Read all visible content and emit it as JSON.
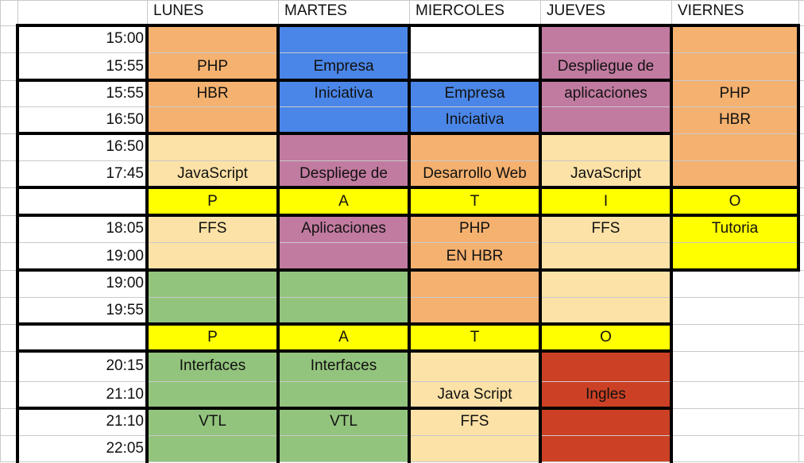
{
  "colors": {
    "orange": "#f5b16f",
    "blue": "#4a86e8",
    "purple": "#c27ba0",
    "cream": "#fde2a7",
    "yellow": "#ffff00",
    "green": "#93c47d",
    "red": "#cc4125",
    "white": "#ffffff"
  },
  "days": [
    "LUNES",
    "MARTES",
    "MIERCOLES",
    "JUEVES",
    "VIERNES"
  ],
  "times": {
    "r1": "15:00",
    "r2": "15:55",
    "r3": "15:55",
    "r4": "16:50",
    "r5": "16:50",
    "r6": "17:45",
    "r8": "18:05",
    "r9": "19:00",
    "r10": "19:00",
    "r11": "19:55",
    "r13": "20:15",
    "r14": "21:10",
    "r15": "21:10",
    "r16": "22:05"
  },
  "patio1": [
    "P",
    "A",
    "T",
    "I",
    "O"
  ],
  "patio2": [
    "P",
    "A",
    "T",
    "O"
  ],
  "subjects": {
    "lunes": {
      "php": "PHP",
      "hbr": "HBR",
      "javascript": "JavaScript",
      "ffs": "FFS",
      "interfaces": "Interfaces",
      "vtl": "VTL"
    },
    "martes": {
      "empresa": "Empresa",
      "iniciativa": "Iniciativa",
      "despliege": "Despliege de",
      "aplicaciones": "Aplicaciones",
      "interfaces": "Interfaces",
      "vtl": "VTL"
    },
    "miercoles": {
      "empresa": "Empresa",
      "iniciativa": "Iniciativa",
      "desarrollo": "Desarrollo Web",
      "php": "PHP",
      "en_hbr": "EN HBR",
      "javascript": "Java Script",
      "ffs": "FFS"
    },
    "jueves": {
      "despliegue": "Despliegue de",
      "aplicaciones": "aplicaciones",
      "javascript": "JavaScript",
      "ffs": "FFS",
      "ingles": "Ingles"
    },
    "viernes": {
      "php": "PHP",
      "hbr": "HBR",
      "tutoria": "Tutoria"
    }
  }
}
